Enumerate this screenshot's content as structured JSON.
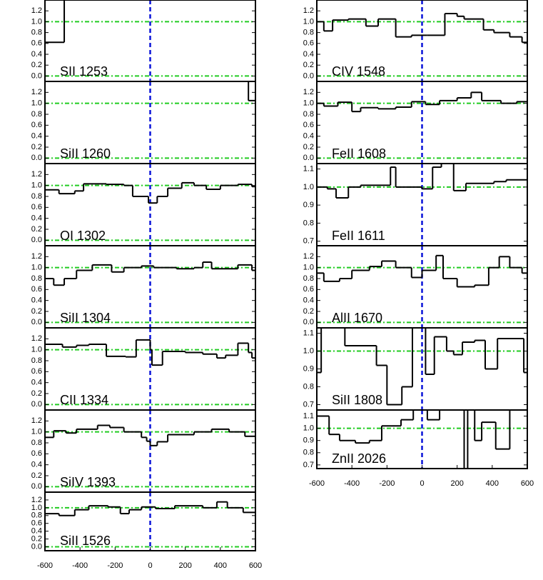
{
  "chart_data": [
    {
      "type": "step",
      "label": "SII 1253",
      "x": [
        -600,
        -490
      ],
      "values": [
        0.62,
        1.5
      ],
      "xlim": [
        -600,
        600
      ],
      "ylim": [
        -0.1,
        1.4
      ],
      "yticks": [
        {
          "value": 0,
          "label": "0.0"
        },
        0.2,
        0.4,
        0.6,
        0.8,
        {
          "value": 1,
          "label": "1.0"
        },
        1.2
      ],
      "hlines": [
        0,
        1
      ],
      "vline": 0,
      "color": "#000000",
      "hline_color": "#22cc22",
      "vline_color": "#0a14d8"
    },
    {
      "type": "step",
      "label": "SiII 1260",
      "x": [
        -600,
        560
      ],
      "values": [
        1.5,
        1.05
      ],
      "xlim": [
        -600,
        600
      ],
      "ylim": [
        -0.1,
        1.4
      ],
      "yticks": [
        {
          "value": 0,
          "label": "0.0"
        },
        0.2,
        0.4,
        0.6,
        0.8,
        {
          "value": 1,
          "label": "1.0"
        },
        1.2
      ],
      "hlines": [
        0,
        1
      ],
      "vline": 0,
      "color": "#000000",
      "hline_color": "#22cc22",
      "vline_color": "#0a14d8"
    },
    {
      "type": "step",
      "label": "OI 1302",
      "x": [
        -600,
        -520,
        -430,
        -380,
        -250,
        -150,
        -100,
        -10,
        40,
        100,
        180,
        250,
        320,
        400,
        500,
        580
      ],
      "values": [
        0.92,
        0.85,
        0.9,
        1.03,
        1.02,
        1.0,
        0.8,
        0.68,
        0.8,
        0.95,
        1.05,
        1.0,
        0.93,
        1.0,
        1.02,
        0.98
      ],
      "xlim": [
        -600,
        600
      ],
      "ylim": [
        -0.1,
        1.4
      ],
      "yticks": [
        {
          "value": 0,
          "label": "0.0"
        },
        0.2,
        0.4,
        0.6,
        0.8,
        {
          "value": 1,
          "label": "1.0"
        },
        1.2
      ],
      "hlines": [
        0,
        1
      ],
      "vline": 0,
      "color": "#000000",
      "hline_color": "#22cc22",
      "vline_color": "#0a14d8"
    },
    {
      "type": "step",
      "label": "SiII 1304",
      "x": [
        -600,
        -550,
        -490,
        -420,
        -330,
        -220,
        -150,
        -50,
        20,
        150,
        250,
        300,
        350,
        500,
        580
      ],
      "values": [
        0.8,
        0.68,
        0.8,
        0.95,
        1.05,
        0.92,
        1.0,
        1.03,
        1.0,
        0.98,
        1.0,
        1.1,
        0.98,
        1.05,
        0.95
      ],
      "xlim": [
        -600,
        600
      ],
      "ylim": [
        -0.1,
        1.4
      ],
      "yticks": [
        {
          "value": 0,
          "label": "0.0"
        },
        0.2,
        0.4,
        0.6,
        0.8,
        {
          "value": 1,
          "label": "1.0"
        },
        1.2
      ],
      "hlines": [
        0,
        1
      ],
      "vline": 0,
      "color": "#000000",
      "hline_color": "#22cc22",
      "vline_color": "#0a14d8"
    },
    {
      "type": "step",
      "label": "CII 1334",
      "x": [
        -600,
        -500,
        -420,
        -350,
        -250,
        -140,
        -80,
        0,
        10,
        70,
        200,
        300,
        380,
        430,
        500,
        560,
        580
      ],
      "values": [
        1.1,
        1.05,
        1.08,
        1.1,
        0.88,
        0.87,
        1.18,
        1.0,
        0.72,
        0.97,
        0.95,
        0.92,
        0.85,
        0.9,
        1.12,
        0.95,
        0.85
      ],
      "xlim": [
        -600,
        600
      ],
      "ylim": [
        -0.1,
        1.4
      ],
      "yticks": [
        {
          "value": 0,
          "label": "0.0"
        },
        0.2,
        0.4,
        0.6,
        0.8,
        {
          "value": 1,
          "label": "1.0"
        },
        1.2
      ],
      "hlines": [
        0,
        1
      ],
      "vline": 0,
      "color": "#000000",
      "hline_color": "#22cc22",
      "vline_color": "#0a14d8"
    },
    {
      "type": "step",
      "label": "SiIV 1393",
      "x": [
        -600,
        -550,
        -480,
        -420,
        -300,
        -230,
        -150,
        -50,
        -20,
        0,
        40,
        100,
        250,
        350,
        450,
        540
      ],
      "values": [
        0.9,
        1.02,
        0.98,
        1.05,
        1.12,
        1.08,
        1.0,
        0.9,
        0.83,
        0.75,
        0.82,
        0.95,
        1.0,
        1.05,
        1.0,
        0.92
      ],
      "xlim": [
        -600,
        600
      ],
      "ylim": [
        -0.1,
        1.4
      ],
      "yticks": [
        {
          "value": 0,
          "label": "0.0"
        },
        0.2,
        0.4,
        0.6,
        0.8,
        {
          "value": 1,
          "label": "1.0"
        },
        1.2
      ],
      "hlines": [
        0,
        1
      ],
      "vline": 0,
      "color": "#000000",
      "hline_color": "#22cc22",
      "vline_color": "#0a14d8"
    },
    {
      "type": "step",
      "label": "SiII 1526",
      "x": [
        -600,
        -520,
        -430,
        -350,
        -240,
        -170,
        -120,
        -50,
        30,
        140,
        300,
        380,
        440,
        530
      ],
      "values": [
        0.85,
        0.8,
        0.95,
        1.05,
        1.02,
        0.85,
        0.95,
        1.02,
        0.98,
        1.05,
        1.0,
        1.15,
        1.0,
        0.88
      ],
      "xlim": [
        -600,
        600
      ],
      "ylim": [
        -0.1,
        1.4
      ],
      "yticks": [
        {
          "value": 0,
          "label": "0.0"
        },
        0.2,
        0.4,
        0.6,
        0.8,
        {
          "value": 1,
          "label": "1.0"
        },
        1.2
      ],
      "xticks": [
        -600,
        -400,
        -200,
        0,
        200,
        400,
        600
      ],
      "hlines": [
        0,
        1
      ],
      "vline": 0,
      "color": "#000000",
      "hline_color": "#22cc22",
      "vline_color": "#0a14d8"
    },
    {
      "type": "step",
      "label": "CIV 1548",
      "x": [
        -600,
        -560,
        -510,
        -420,
        -320,
        -250,
        -150,
        -60,
        30,
        130,
        200,
        240,
        350,
        410,
        500,
        570
      ],
      "values": [
        1.0,
        0.83,
        1.03,
        1.05,
        0.92,
        1.05,
        0.72,
        0.75,
        0.75,
        1.15,
        1.1,
        1.05,
        0.85,
        0.8,
        0.72,
        0.62
      ],
      "xlim": [
        -600,
        600
      ],
      "ylim": [
        -0.1,
        1.4
      ],
      "yticks": [
        {
          "value": 0,
          "label": "0.0"
        },
        0.2,
        0.4,
        0.6,
        0.8,
        {
          "value": 1,
          "label": "1.0"
        },
        1.2
      ],
      "hlines": [
        0,
        1
      ],
      "vline": 0,
      "color": "#000000",
      "hline_color": "#22cc22",
      "vline_color": "#0a14d8"
    },
    {
      "type": "step",
      "label": "FeII 1608",
      "x": [
        -600,
        -560,
        -480,
        -400,
        -350,
        -250,
        -150,
        -60,
        20,
        100,
        200,
        280,
        340,
        450,
        540
      ],
      "values": [
        1.0,
        0.95,
        1.02,
        0.85,
        0.92,
        0.9,
        0.93,
        1.03,
        0.98,
        1.05,
        1.1,
        1.2,
        1.05,
        1.0,
        1.03
      ],
      "xlim": [
        -600,
        600
      ],
      "ylim": [
        -0.1,
        1.4
      ],
      "yticks": [
        {
          "value": 0,
          "label": "0.0"
        },
        0.2,
        0.4,
        0.6,
        0.8,
        {
          "value": 1,
          "label": "1.0"
        },
        1.2
      ],
      "hlines": [
        0,
        1
      ],
      "vline": 0,
      "color": "#000000",
      "hline_color": "#22cc22",
      "vline_color": "#0a14d8"
    },
    {
      "type": "step",
      "label": "FeII 1611",
      "x": [
        -600,
        -540,
        -490,
        -420,
        -350,
        -180,
        -150,
        0,
        60,
        110,
        180,
        250,
        410,
        480
      ],
      "values": [
        1.0,
        0.99,
        0.94,
        1.0,
        1.01,
        1.11,
        1.0,
        0.99,
        1.11,
        1.2,
        0.98,
        1.02,
        1.03,
        1.04
      ],
      "xlim": [
        -600,
        600
      ],
      "ylim": [
        0.675,
        1.13
      ],
      "yticks": [
        0.7,
        0.8,
        0.9,
        {
          "value": 1,
          "label": "1.0"
        },
        1.1
      ],
      "hlines": [
        1
      ],
      "vline": 0,
      "color": "#000000",
      "hline_color": "#22cc22",
      "vline_color": "#0a14d8"
    },
    {
      "type": "step",
      "label": "AlII 1670",
      "x": [
        -600,
        -560,
        -470,
        -400,
        -300,
        -230,
        -150,
        -60,
        0,
        80,
        120,
        200,
        300,
        380,
        440,
        500,
        570
      ],
      "values": [
        0.9,
        0.75,
        0.8,
        0.95,
        1.02,
        1.12,
        1.0,
        0.82,
        0.95,
        1.22,
        0.8,
        0.65,
        0.68,
        1.0,
        1.2,
        1.0,
        0.9
      ],
      "xlim": [
        -600,
        600
      ],
      "ylim": [
        -0.1,
        1.4
      ],
      "yticks": [
        {
          "value": 0,
          "label": "0.0"
        },
        0.2,
        0.4,
        0.6,
        0.8,
        {
          "value": 1,
          "label": "1.0"
        },
        1.2
      ],
      "hlines": [
        0,
        1
      ],
      "vline": 0,
      "color": "#000000",
      "hline_color": "#22cc22",
      "vline_color": "#0a14d8"
    },
    {
      "type": "step",
      "label": "SiII 1808",
      "x": [
        -600,
        -575,
        -440,
        -260,
        -200,
        -115,
        -55,
        20,
        70,
        140,
        180,
        230,
        300,
        360,
        430,
        580
      ],
      "values": [
        0.88,
        1.14,
        1.03,
        0.92,
        0.7,
        0.8,
        1.14,
        0.87,
        1.08,
        1.0,
        0.98,
        1.05,
        1.06,
        0.9,
        1.07,
        0.88
      ],
      "xlim": [
        -600,
        600
      ],
      "ylim": [
        0.67,
        1.13
      ],
      "yticks": [
        0.7,
        0.8,
        0.9,
        {
          "value": 1,
          "label": "1.0"
        },
        1.1
      ],
      "hlines": [
        1
      ],
      "vline": 0,
      "color": "#000000",
      "hline_color": "#22cc22",
      "vline_color": "#0a14d8"
    },
    {
      "type": "step",
      "label": "ZnII 2026",
      "x": [
        -600,
        -530,
        -470,
        -380,
        -300,
        -230,
        -120,
        -50,
        30,
        100,
        240,
        260,
        300,
        340,
        420,
        500
      ],
      "values": [
        1.1,
        0.95,
        0.9,
        0.88,
        0.9,
        1.02,
        1.07,
        1.2,
        1.07,
        1.2,
        0.6,
        1.2,
        0.9,
        1.05,
        0.83,
        1.2
      ],
      "xlim": [
        -600,
        600
      ],
      "ylim": [
        0.67,
        1.15
      ],
      "yticks": [
        0.7,
        0.8,
        0.9,
        {
          "value": 1,
          "label": "1.0"
        },
        1.1
      ],
      "xticks": [
        -600,
        -400,
        -200,
        0,
        200,
        400,
        600
      ],
      "hlines": [
        1
      ],
      "vline": 0,
      "color": "#000000",
      "hline_color": "#22cc22",
      "vline_color": "#0a14d8"
    }
  ]
}
